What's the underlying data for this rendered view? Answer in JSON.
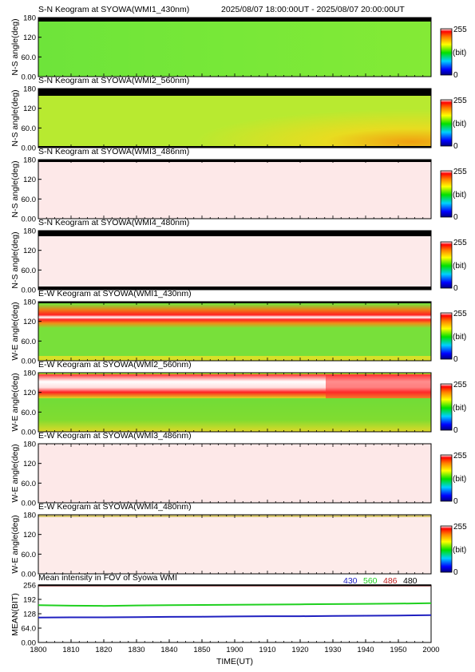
{
  "header": {
    "range_text": "2025/08/07 18:00:00UT - 2025/08/07 20:00:00UT"
  },
  "colorbar": {
    "max_label": "255",
    "unit_label": "(bit)",
    "min_label": "0"
  },
  "chart_data": [
    {
      "type": "heatmap",
      "title": "S-N Keogram at SYOWA(WMI1_430nm)",
      "ylabel": "N-S angle(deg)",
      "y_ticks": [
        "0.00",
        "60.0",
        "120",
        "180"
      ],
      "ylim": [
        0,
        180
      ],
      "xlim": [
        "18:00",
        "20:00"
      ],
      "colorbar": [
        0,
        255
      ],
      "dominant_color": "green",
      "description_values": {
        "background_bit": 120
      }
    },
    {
      "type": "heatmap",
      "title": "S-N Keogram at SYOWA(WMI2_560nm)",
      "ylabel": "N-S angle(deg)",
      "y_ticks": [
        "0.00",
        "60.0",
        "120",
        "180"
      ],
      "ylim": [
        0,
        180
      ],
      "xlim": [
        "18:00",
        "20:00"
      ],
      "colorbar": [
        0,
        255
      ],
      "dominant_color": "yellow-green"
    },
    {
      "type": "heatmap",
      "title": "S-N Keogram at SYOWA(WMI3_486nm)",
      "ylabel": "N-S angle(deg)",
      "y_ticks": [
        "0.00",
        "60.0",
        "120",
        "180"
      ],
      "ylim": [
        0,
        180
      ],
      "xlim": [
        "18:00",
        "20:00"
      ],
      "colorbar": [
        0,
        255
      ],
      "dominant_color": "saturated"
    },
    {
      "type": "heatmap",
      "title": "S-N Keogram at SYOWA(WMI4_480nm)",
      "ylabel": "N-S angle(deg)",
      "y_ticks": [
        "0.00",
        "60.0",
        "120",
        "180"
      ],
      "ylim": [
        0,
        180
      ],
      "xlim": [
        "18:00",
        "20:00"
      ],
      "colorbar": [
        0,
        255
      ],
      "dominant_color": "saturated"
    },
    {
      "type": "heatmap",
      "title": "E-W Keogram at SYOWA(WMI1_430nm)",
      "ylabel": "W-E angle(deg)",
      "y_ticks": [
        "0.00",
        "60.0",
        "120",
        "180"
      ],
      "ylim": [
        0,
        180
      ],
      "xlim": [
        "18:00",
        "20:00"
      ],
      "colorbar": [
        0,
        255
      ],
      "dominant_color": "green",
      "bright_band_deg": 135
    },
    {
      "type": "heatmap",
      "title": "E-W Keogram at SYOWA(WMI2_560nm)",
      "ylabel": "W-E angle(deg)",
      "y_ticks": [
        "0.00",
        "60.0",
        "120",
        "180"
      ],
      "ylim": [
        0,
        180
      ],
      "xlim": [
        "18:00",
        "20:00"
      ],
      "colorbar": [
        0,
        255
      ],
      "dominant_color": "green-red",
      "bright_band_deg": 140
    },
    {
      "type": "heatmap",
      "title": "E-W Keogram at SYOWA(WMI3_486nm)",
      "ylabel": "W-E angle(deg)",
      "y_ticks": [
        "0.00",
        "60.0",
        "120",
        "180"
      ],
      "ylim": [
        0,
        180
      ],
      "xlim": [
        "18:00",
        "20:00"
      ],
      "colorbar": [
        0,
        255
      ],
      "dominant_color": "saturated"
    },
    {
      "type": "heatmap",
      "title": "E-W Keogram at SYOWA(WMI4_480nm)",
      "ylabel": "W-E angle(deg)",
      "y_ticks": [
        "0.00",
        "60.0",
        "120",
        "180"
      ],
      "ylim": [
        0,
        180
      ],
      "xlim": [
        "18:00",
        "20:00"
      ],
      "colorbar": [
        0,
        255
      ],
      "dominant_color": "saturated"
    },
    {
      "type": "line",
      "title": "Mean intensity in FOV of Syowa WMI",
      "xlabel": "TIME(UT)",
      "ylabel": "MEAN(BIT)",
      "x_ticks": [
        "1800",
        "1810",
        "1820",
        "1830",
        "1840",
        "1850",
        "1900",
        "1910",
        "1920",
        "1930",
        "1940",
        "1950",
        "2000"
      ],
      "y_ticks": [
        "0.00",
        "64.0",
        "128",
        "192",
        "256"
      ],
      "ylim": [
        0,
        256
      ],
      "x_minutes": [
        0,
        10,
        20,
        30,
        40,
        50,
        60,
        70,
        80,
        90,
        100,
        110,
        120
      ],
      "series": [
        {
          "name": "430",
          "color": "#2020c0",
          "values": [
            111,
            112,
            112,
            113,
            114,
            115,
            116,
            117,
            117,
            118,
            119,
            120,
            122
          ]
        },
        {
          "name": "560",
          "color": "#20d020",
          "values": [
            166,
            164,
            163,
            165,
            166,
            167,
            168,
            169,
            170,
            171,
            172,
            173,
            175
          ]
        },
        {
          "name": "486",
          "color": "#c02020",
          "values": [
            254,
            254,
            254,
            254,
            254,
            254,
            254,
            254,
            254,
            254,
            254,
            254,
            254
          ]
        },
        {
          "name": "480",
          "color": "#000000",
          "values": [
            255,
            255,
            255,
            255,
            255,
            255,
            255,
            255,
            255,
            255,
            255,
            255,
            255
          ]
        }
      ]
    }
  ]
}
